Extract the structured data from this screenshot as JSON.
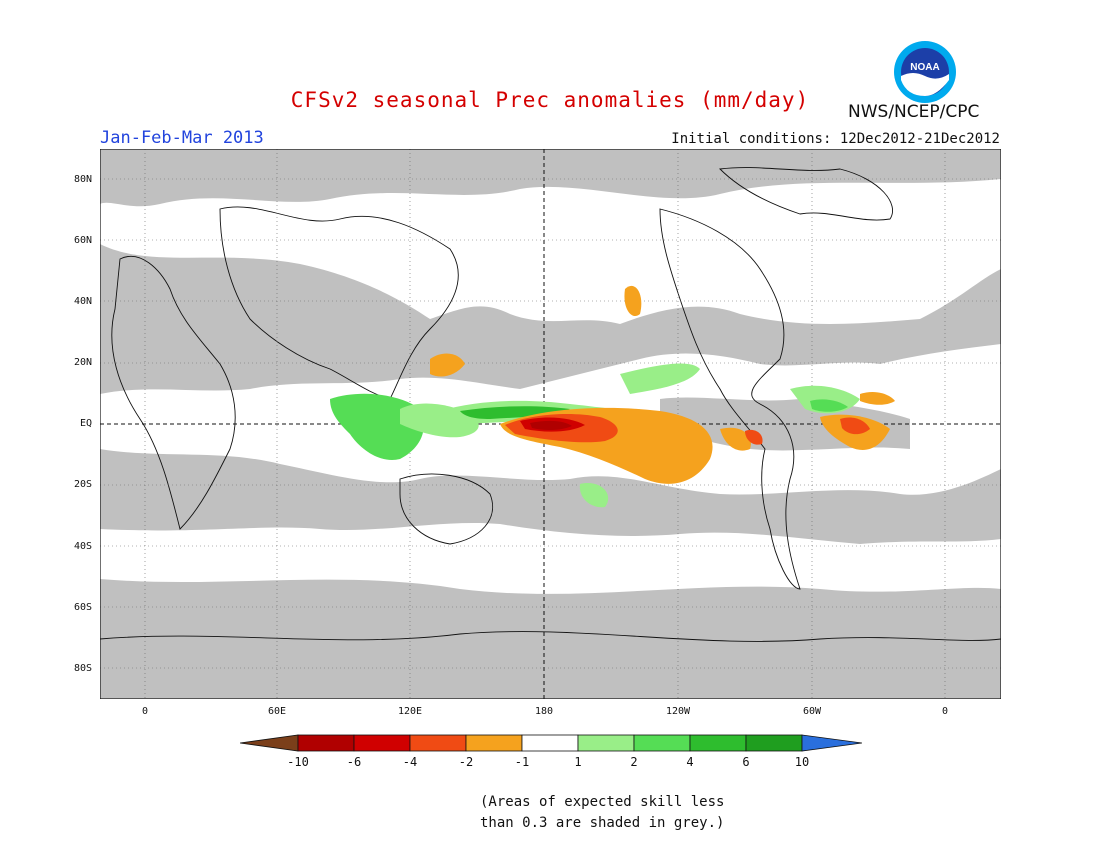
{
  "title": "CFSv2 seasonal Prec anomalies (mm/day)",
  "period": "Jan-Feb-Mar 2013",
  "initial_conditions": "Initial conditions: 12Dec2012-21Dec2012",
  "agency": "NWS/NCEP/CPC",
  "logo": {
    "icon": "noaa-logo-icon",
    "text": "NOAA"
  },
  "lat_labels": [
    "80N",
    "60N",
    "40N",
    "20N",
    "EQ",
    "20S",
    "40S",
    "60S",
    "80S"
  ],
  "lon_labels": [
    "0",
    "60E",
    "120E",
    "180",
    "120W",
    "60W",
    "0"
  ],
  "colorbar": {
    "labels": [
      "-10",
      "-6",
      "-4",
      "-2",
      "-1",
      "1",
      "2",
      "4",
      "6",
      "10"
    ],
    "colors": [
      "#7b3f1a",
      "#b00000",
      "#d00000",
      "#f04b14",
      "#f5a21e",
      "#ffffff",
      "#99ee88",
      "#55dd55",
      "#2ebd2e",
      "#1f9e1f",
      "#2a6fdd"
    ]
  },
  "note_line1": "(Areas of expected skill less",
  "note_line2": "than 0.3 are shaded in grey.)",
  "colors": {
    "skill_grey": "#c0c0c0",
    "title": "#d40000",
    "period": "#2244dd"
  }
}
